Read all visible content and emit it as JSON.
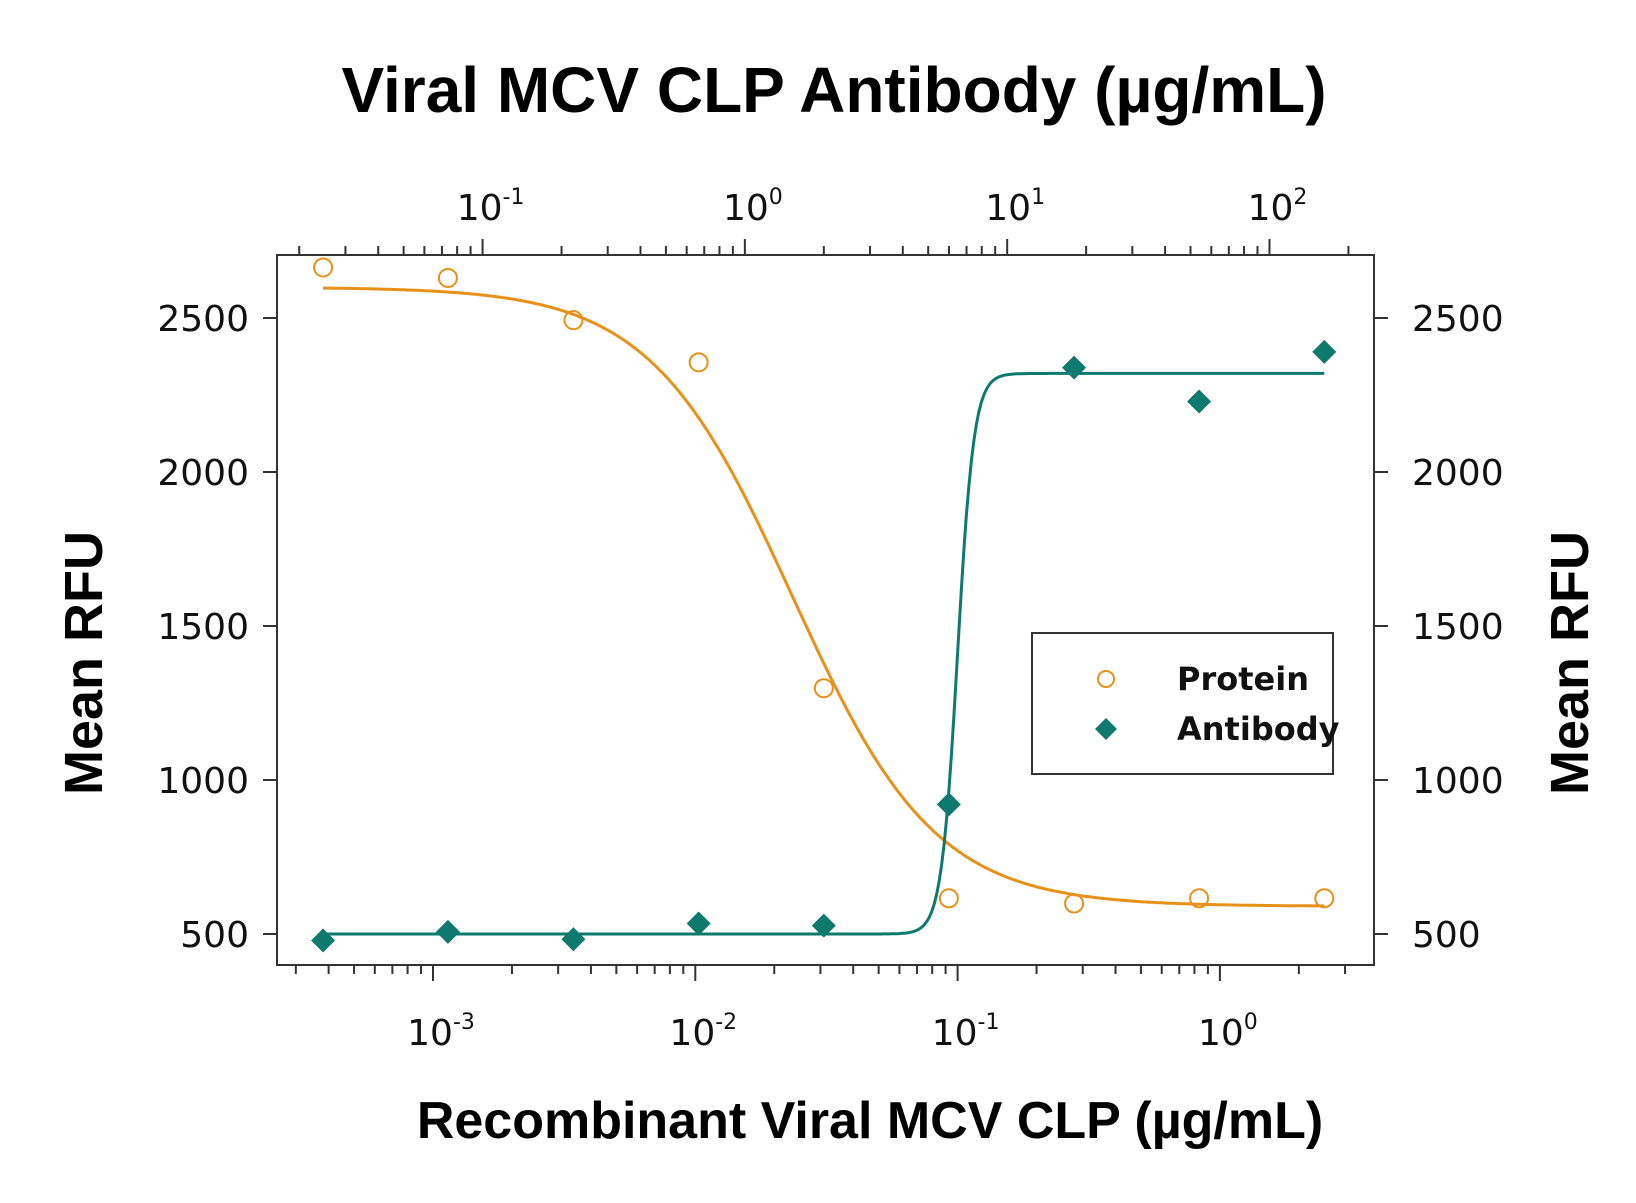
{
  "chart_data": {
    "type": "scatter",
    "title": "Viral MCV CLP Antibody (µg/mL)",
    "xlabel": "Recombinant Viral MCV CLP (µg/mL)",
    "ylabel": "Mean RFU",
    "ylabel_right": "Mean RFU",
    "x_scale": "log",
    "x_ticks": [
      0.001,
      0.01,
      0.1,
      1
    ],
    "x_tick_labels": [
      "-3",
      "-2",
      "-1",
      "0"
    ],
    "top_x_scale": "log",
    "top_x_ticks": [
      0.1,
      1,
      10,
      100
    ],
    "top_x_tick_labels": [
      "-1",
      "0",
      "1",
      "2"
    ],
    "ylim": [
      400,
      2700
    ],
    "y_ticks": [
      500,
      1000,
      1500,
      2000,
      2500
    ],
    "y_tick_labels": [
      "500",
      "1000",
      "1500",
      "2000",
      "2500"
    ],
    "grid": false,
    "legend_position": "center-right",
    "series": [
      {
        "name": "Protein",
        "marker": "open-circle",
        "color": "#E8911A",
        "x": [
          0.000381,
          0.00114,
          0.00343,
          0.0103,
          0.0309,
          0.0926,
          0.278,
          0.833,
          2.5
        ],
        "y": [
          2664,
          2630,
          2493,
          2356,
          1298,
          616,
          599,
          616,
          616
        ],
        "fit": {
          "model": "4PL",
          "top": 2600,
          "bottom": 590,
          "ec50": 0.0235,
          "hill": -1.6
        }
      },
      {
        "name": "Antibody",
        "marker": "filled-diamond",
        "color": "#0E7A6E",
        "x": [
          0.000381,
          0.00114,
          0.00343,
          0.0103,
          0.0309,
          0.0926,
          0.278,
          0.833,
          2.5
        ],
        "y": [
          479,
          507,
          483,
          534,
          527,
          921,
          2339,
          2229,
          2390
        ],
        "fit": {
          "model": "4PL",
          "top": 2320,
          "bottom": 500,
          "ec50": 0.1,
          "hill": 14
        }
      }
    ]
  }
}
